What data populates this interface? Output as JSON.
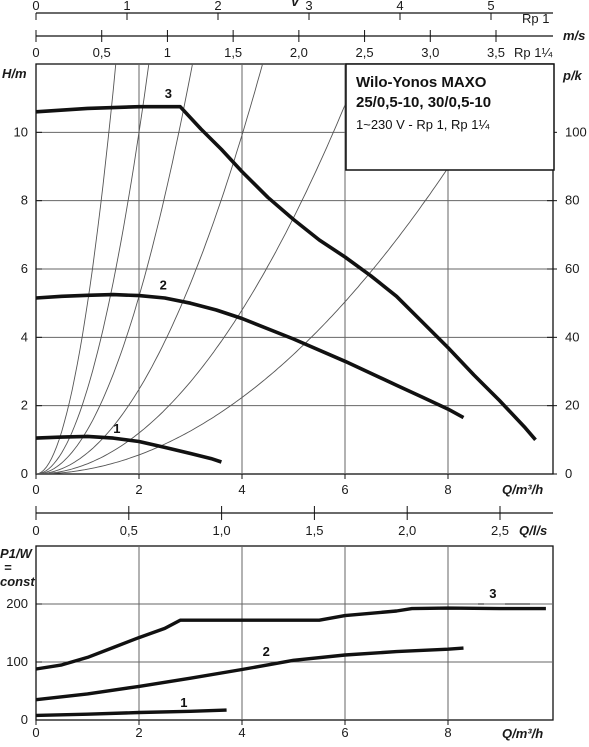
{
  "scales": {
    "v_rp1": {
      "label": "v",
      "unit": "m/s",
      "suffix": "Rp 1",
      "ticks": [
        "0",
        "1",
        "2",
        "3",
        "4",
        "5"
      ]
    },
    "v_rp114": {
      "suffix": "Rp 1¼",
      "ticks": [
        "0",
        "0,5",
        "1",
        "1,5",
        "2,0",
        "2,5",
        "3,0",
        "3,5"
      ]
    },
    "q_ls": {
      "label": "Q/l/s",
      "ticks": [
        "0",
        "0,5",
        "1,0",
        "1,5",
        "2,0",
        "2,5"
      ]
    }
  },
  "info_box": {
    "line1": "Wilo-Yonos MAXO",
    "line2": "25/0,5-10, 30/0,5-10",
    "line3": "1~230 V - Rp 1, Rp 1¼"
  },
  "chart_data": [
    {
      "type": "line",
      "ylabel": "H/m",
      "y2label": "p/k",
      "xlabel": "Q/m³/h",
      "xlim": [
        0,
        10
      ],
      "ylim": [
        0,
        12
      ],
      "y2lim": [
        0,
        120
      ],
      "x_ticks": [
        "0",
        "2",
        "4",
        "6",
        "8"
      ],
      "y_ticks": [
        "0",
        "2",
        "4",
        "6",
        "8",
        "10"
      ],
      "y2_ticks": [
        "0",
        "20",
        "40",
        "60",
        "80",
        "100"
      ],
      "grid": true,
      "series": [
        {
          "name": "1",
          "points": [
            [
              0,
              1.05
            ],
            [
              0.5,
              1.08
            ],
            [
              1,
              1.1
            ],
            [
              1.5,
              1.05
            ],
            [
              2,
              0.95
            ],
            [
              2.5,
              0.78
            ],
            [
              3,
              0.6
            ],
            [
              3.4,
              0.45
            ],
            [
              3.6,
              0.35
            ]
          ]
        },
        {
          "name": "2",
          "points": [
            [
              0,
              5.15
            ],
            [
              0.5,
              5.2
            ],
            [
              1,
              5.23
            ],
            [
              1.5,
              5.25
            ],
            [
              2,
              5.22
            ],
            [
              2.5,
              5.15
            ],
            [
              3,
              5.0
            ],
            [
              3.5,
              4.8
            ],
            [
              4,
              4.55
            ],
            [
              5,
              3.95
            ],
            [
              6,
              3.3
            ],
            [
              7,
              2.6
            ],
            [
              7.5,
              2.25
            ],
            [
              8,
              1.9
            ],
            [
              8.3,
              1.65
            ]
          ]
        },
        {
          "name": "3",
          "points": [
            [
              0,
              10.6
            ],
            [
              1,
              10.7
            ],
            [
              2,
              10.75
            ],
            [
              2.8,
              10.75
            ],
            [
              3.2,
              10.1
            ],
            [
              3.6,
              9.5
            ],
            [
              4,
              8.85
            ],
            [
              4.5,
              8.1
            ],
            [
              5,
              7.45
            ],
            [
              5.5,
              6.85
            ],
            [
              6,
              6.35
            ],
            [
              6.5,
              5.8
            ],
            [
              7,
              5.2
            ],
            [
              7.5,
              4.45
            ],
            [
              8,
              3.7
            ],
            [
              8.5,
              2.9
            ],
            [
              9,
              2.15
            ],
            [
              9.5,
              1.35
            ],
            [
              9.7,
              1.0
            ]
          ]
        }
      ],
      "curve_label_positions": [
        [
          1.5,
          1.2
        ],
        [
          2.4,
          5.4
        ],
        [
          2.5,
          11.0
        ]
      ]
    },
    {
      "type": "line",
      "ylabel": "P1/W = const",
      "xlabel": "Q/m³/h",
      "xlim": [
        0,
        10
      ],
      "ylim": [
        0,
        250
      ],
      "x_ticks": [
        "0",
        "2",
        "4",
        "6",
        "8"
      ],
      "y_ticks": [
        "0",
        "100",
        "200"
      ],
      "grid": true,
      "series": [
        {
          "name": "1",
          "points": [
            [
              0,
              8
            ],
            [
              1,
              10
            ],
            [
              2,
              13
            ],
            [
              3,
              15
            ],
            [
              3.7,
              17
            ]
          ]
        },
        {
          "name": "2",
          "points": [
            [
              0,
              35
            ],
            [
              1,
              45
            ],
            [
              2,
              58
            ],
            [
              3,
              72
            ],
            [
              4,
              87
            ],
            [
              5,
              103
            ],
            [
              6,
              112
            ],
            [
              7,
              118
            ],
            [
              8,
              122
            ],
            [
              8.3,
              124
            ]
          ]
        },
        {
          "name": "3",
          "points": [
            [
              0,
              88
            ],
            [
              0.5,
              95
            ],
            [
              1,
              108
            ],
            [
              1.5,
              125
            ],
            [
              2,
              142
            ],
            [
              2.5,
              158
            ],
            [
              2.8,
              172
            ],
            [
              3.3,
              172
            ],
            [
              4,
              172
            ],
            [
              5,
              172
            ],
            [
              5.5,
              172
            ],
            [
              6,
              180
            ],
            [
              7,
              188
            ],
            [
              7.3,
              192
            ],
            [
              8,
              193
            ],
            [
              9,
              192
            ],
            [
              9.9,
              192
            ]
          ]
        }
      ],
      "curve_label_positions": [
        [
          2.8,
          22
        ],
        [
          4.4,
          110
        ],
        [
          8.8,
          210
        ]
      ]
    }
  ]
}
